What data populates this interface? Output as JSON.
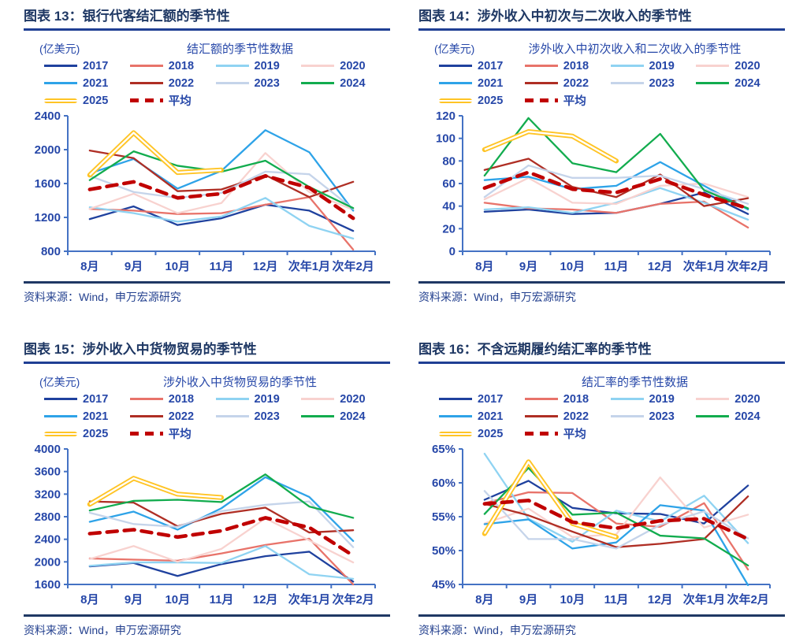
{
  "page": {
    "background": "#FFFFFF"
  },
  "colors": {
    "figure_title": "#1F3864",
    "title_rule": "#1F3F94",
    "axis": "#4472C4",
    "tick_label": "#2647A8",
    "source_text": "#24418F",
    "source_rule": "#1F3864",
    "series": {
      "2017": "#1F419E",
      "2018": "#E8736A",
      "2019": "#8FD3F2",
      "2020": "#F8D2CF",
      "2021": "#2EA3E8",
      "2022": "#AF2E24",
      "2023": "#C5D4EA",
      "2024": "#12AC4E",
      "2025": "#FFC425",
      "平均": "#C00000"
    }
  },
  "figures": [
    {
      "header": "图表 13：银行代客结汇额的季节性",
      "source": "资料来源：Wind，申万宏源研究"
    },
    {
      "header": "图表 14：涉外收入中初次与二次收入的季节性",
      "source": "资料来源：Wind，申万宏源研究"
    },
    {
      "header": "图表 15：涉外收入中货物贸易的季节性",
      "source": "资料来源：Wind，申万宏源研究"
    },
    {
      "header": "图表 16：不含远期履约结汇率的季节性",
      "source": "资料来源：Wind，申万宏源研究"
    }
  ],
  "chart_data": [
    {
      "type": "line",
      "title": "结汇额的季节性数据",
      "ylabel": "(亿美元)",
      "categories": [
        "8月",
        "9月",
        "10月",
        "11月",
        "12月",
        "次年1月",
        "次年2月"
      ],
      "ylim": [
        800,
        2400
      ],
      "yticks": [
        800,
        1200,
        1600,
        2000,
        2400
      ],
      "ysuffix": "",
      "grid": false,
      "legend_position": "top",
      "series": [
        {
          "name": "2017",
          "color": "#1F419E",
          "style": "solid",
          "values": [
            1180,
            1330,
            1110,
            1190,
            1350,
            1280,
            1040
          ]
        },
        {
          "name": "2018",
          "color": "#E8736A",
          "style": "solid",
          "values": [
            1300,
            1280,
            1240,
            1250,
            1350,
            1440,
            820
          ]
        },
        {
          "name": "2019",
          "color": "#8FD3F2",
          "style": "solid",
          "values": [
            1320,
            1250,
            1150,
            1210,
            1430,
            1100,
            950
          ]
        },
        {
          "name": "2020",
          "color": "#F8D2CF",
          "style": "solid",
          "values": [
            1300,
            1480,
            1250,
            1370,
            1960,
            1500,
            1290
          ]
        },
        {
          "name": "2021",
          "color": "#2EA3E8",
          "style": "solid",
          "values": [
            1720,
            1890,
            1540,
            1750,
            2230,
            1970,
            1280
          ]
        },
        {
          "name": "2022",
          "color": "#AF2E24",
          "style": "solid",
          "values": [
            1990,
            1900,
            1510,
            1530,
            1700,
            1440,
            1620
          ]
        },
        {
          "name": "2023",
          "color": "#C5D4EA",
          "style": "solid",
          "values": [
            1690,
            1500,
            1430,
            1490,
            1740,
            1710,
            1300
          ]
        },
        {
          "name": "2024",
          "color": "#12AC4E",
          "style": "solid",
          "values": [
            1640,
            1980,
            1810,
            1740,
            1870,
            1560,
            1310
          ]
        },
        {
          "name": "2025",
          "color": "#FFC425",
          "style": "double",
          "values": [
            1700,
            2200,
            1730,
            1760,
            null,
            null,
            null
          ]
        },
        {
          "name": "平均",
          "color": "#C00000",
          "style": "dashed",
          "values": [
            1530,
            1620,
            1430,
            1480,
            1690,
            1550,
            1190
          ]
        }
      ]
    },
    {
      "type": "line",
      "title": "涉外收入中初次收入和二次收入的季节性",
      "ylabel": "(亿美元)",
      "categories": [
        "8月",
        "9月",
        "10月",
        "11月",
        "12月",
        "次年1月",
        "次年2月"
      ],
      "ylim": [
        0,
        120
      ],
      "yticks": [
        0,
        20,
        40,
        60,
        80,
        100,
        120
      ],
      "ysuffix": "",
      "grid": false,
      "legend_position": "top",
      "series": [
        {
          "name": "2017",
          "color": "#1F419E",
          "style": "solid",
          "values": [
            35,
            37,
            33,
            34,
            42,
            52,
            33
          ]
        },
        {
          "name": "2018",
          "color": "#E8736A",
          "style": "solid",
          "values": [
            43,
            38,
            37,
            34,
            42,
            44,
            21
          ]
        },
        {
          "name": "2019",
          "color": "#8FD3F2",
          "style": "solid",
          "values": [
            37,
            39,
            34,
            43,
            56,
            43,
            28
          ]
        },
        {
          "name": "2020",
          "color": "#F8D2CF",
          "style": "solid",
          "values": [
            46,
            65,
            43,
            42,
            58,
            60,
            48
          ]
        },
        {
          "name": "2021",
          "color": "#2EA3E8",
          "style": "solid",
          "values": [
            63,
            66,
            55,
            58,
            79,
            58,
            37
          ]
        },
        {
          "name": "2022",
          "color": "#AF2E24",
          "style": "solid",
          "values": [
            72,
            82,
            57,
            48,
            68,
            40,
            47
          ]
        },
        {
          "name": "2023",
          "color": "#C5D4EA",
          "style": "solid",
          "values": [
            48,
            76,
            65,
            65,
            67,
            55,
            42
          ]
        },
        {
          "name": "2024",
          "color": "#12AC4E",
          "style": "solid",
          "values": [
            67,
            118,
            78,
            70,
            104,
            54,
            38
          ]
        },
        {
          "name": "2025",
          "color": "#FFC425",
          "style": "double",
          "values": [
            90,
            106,
            102,
            80,
            null,
            null,
            null
          ]
        },
        {
          "name": "平均",
          "color": "#C00000",
          "style": "dashed",
          "values": [
            56,
            70,
            55,
            52,
            64,
            50,
            38
          ]
        }
      ]
    },
    {
      "type": "line",
      "title": "涉外收入中货物贸易的季节性",
      "ylabel": "(亿美元)",
      "categories": [
        "8月",
        "9月",
        "10月",
        "11月",
        "12月",
        "次年1月",
        "次年2月"
      ],
      "ylim": [
        1600,
        4000
      ],
      "yticks": [
        1600,
        2000,
        2400,
        2800,
        3200,
        3600,
        4000
      ],
      "ysuffix": "",
      "grid": false,
      "legend_position": "top",
      "series": [
        {
          "name": "2017",
          "color": "#1F419E",
          "style": "solid",
          "values": [
            1920,
            1980,
            1750,
            1960,
            2100,
            2180,
            1650
          ]
        },
        {
          "name": "2018",
          "color": "#E8736A",
          "style": "solid",
          "values": [
            2060,
            2040,
            2020,
            2150,
            2300,
            2410,
            1600
          ]
        },
        {
          "name": "2019",
          "color": "#8FD3F2",
          "style": "solid",
          "values": [
            1930,
            1990,
            1990,
            1980,
            2280,
            1780,
            1700
          ]
        },
        {
          "name": "2020",
          "color": "#F8D2CF",
          "style": "solid",
          "values": [
            2050,
            2280,
            2000,
            2230,
            2770,
            2380,
            1990
          ]
        },
        {
          "name": "2021",
          "color": "#2EA3E8",
          "style": "solid",
          "values": [
            2710,
            2890,
            2570,
            2950,
            3500,
            3150,
            2370
          ]
        },
        {
          "name": "2022",
          "color": "#AF2E24",
          "style": "solid",
          "values": [
            3070,
            3050,
            2630,
            2850,
            2960,
            2520,
            2560
          ]
        },
        {
          "name": "2023",
          "color": "#C5D4EA",
          "style": "solid",
          "values": [
            2870,
            2670,
            2620,
            2900,
            3010,
            3070,
            2260
          ]
        },
        {
          "name": "2024",
          "color": "#12AC4E",
          "style": "solid",
          "values": [
            2910,
            3080,
            3100,
            3060,
            3550,
            2980,
            2780
          ]
        },
        {
          "name": "2025",
          "color": "#FFC425",
          "style": "double",
          "values": [
            3020,
            3480,
            3200,
            3140,
            null,
            null,
            null
          ]
        },
        {
          "name": "平均",
          "color": "#C00000",
          "style": "dashed",
          "values": [
            2500,
            2570,
            2440,
            2550,
            2780,
            2610,
            2110
          ]
        }
      ]
    },
    {
      "type": "line",
      "title": "结汇率的季节性数据",
      "ylabel": "",
      "categories": [
        "8月",
        "9月",
        "10月",
        "11月",
        "12月",
        "次年1月",
        "次年2月"
      ],
      "ylim": [
        45,
        65
      ],
      "yticks": [
        45,
        50,
        55,
        60,
        65
      ],
      "ysuffix": "%",
      "grid": false,
      "legend_position": "top",
      "series": [
        {
          "name": "2017",
          "color": "#1F419E",
          "style": "solid",
          "values": [
            57.5,
            60.3,
            56.3,
            55.5,
            55.4,
            54.0,
            59.6
          ]
        },
        {
          "name": "2018",
          "color": "#E8736A",
          "style": "solid",
          "values": [
            57.0,
            58.6,
            58.5,
            54.0,
            53.5,
            57.0,
            47.2
          ]
        },
        {
          "name": "2019",
          "color": "#8FD3F2",
          "style": "solid",
          "values": [
            64.3,
            54.7,
            51.3,
            55.9,
            54.3,
            58.1,
            51.1
          ]
        },
        {
          "name": "2020",
          "color": "#F8D2CF",
          "style": "solid",
          "values": [
            54.0,
            56.2,
            52.0,
            52.4,
            60.8,
            53.4,
            55.3
          ]
        },
        {
          "name": "2021",
          "color": "#2EA3E8",
          "style": "solid",
          "values": [
            53.9,
            54.6,
            50.3,
            51.2,
            56.7,
            55.9,
            44.9
          ]
        },
        {
          "name": "2022",
          "color": "#AF2E24",
          "style": "solid",
          "values": [
            56.9,
            55.2,
            52.8,
            50.5,
            51.0,
            51.7,
            58.0
          ]
        },
        {
          "name": "2023",
          "color": "#C5D4EA",
          "style": "solid",
          "values": [
            58.8,
            51.7,
            51.7,
            50.3,
            53.8,
            55.8,
            51.8
          ]
        },
        {
          "name": "2024",
          "color": "#12AC4E",
          "style": "solid",
          "values": [
            55.4,
            62.2,
            55.3,
            55.6,
            52.2,
            51.8,
            47.8
          ]
        },
        {
          "name": "2025",
          "color": "#FFC425",
          "style": "double",
          "values": [
            52.5,
            63.1,
            54.0,
            52.0,
            null,
            null,
            null
          ]
        },
        {
          "name": "平均",
          "color": "#C00000",
          "style": "dashed",
          "values": [
            56.9,
            57.4,
            54.2,
            53.3,
            54.4,
            54.7,
            51.7
          ]
        }
      ]
    }
  ]
}
